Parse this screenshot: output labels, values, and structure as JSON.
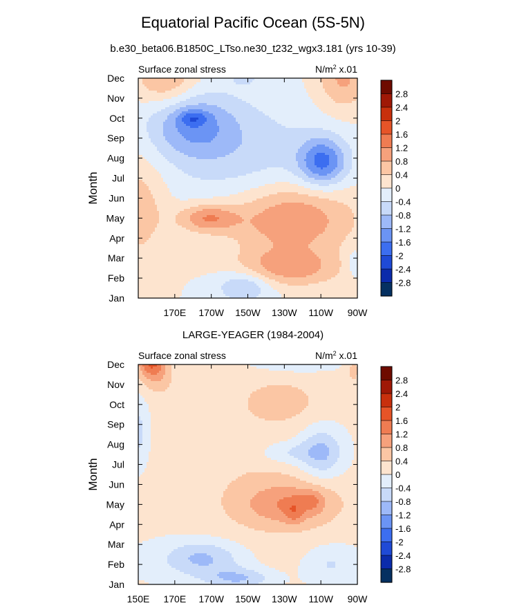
{
  "title": "Equatorial Pacific Ocean (5S-5N)",
  "subtitle": "b.e30_beta06.B1850C_LTso.ne30_t232_wgx3.181 (yrs 10-39)",
  "chart_data": [
    {
      "type": "heatmap",
      "panel_title": "",
      "left_string": "Surface zonal stress",
      "units_prefix": "N/m",
      "units_exp": "2",
      "units_suffix": " x.01",
      "ylabel": "Month",
      "xlim": [
        150,
        270
      ],
      "x_ticks": [
        {
          "label": "170E",
          "lon": 170
        },
        {
          "label": "170W",
          "lon": 190
        },
        {
          "label": "150W",
          "lon": 210
        },
        {
          "label": "130W",
          "lon": 230
        },
        {
          "label": "110W",
          "lon": 250
        },
        {
          "label": "90W",
          "lon": 270
        }
      ],
      "months": [
        "Jan",
        "Feb",
        "Mar",
        "Apr",
        "May",
        "Jun",
        "Jul",
        "Aug",
        "Sep",
        "Oct",
        "Nov",
        "Dec"
      ],
      "levels": [
        -2.8,
        -2.4,
        -2,
        -1.6,
        -1.2,
        -0.8,
        -0.4,
        0,
        0.4,
        0.8,
        1.2,
        1.6,
        2,
        2.4,
        2.8
      ],
      "features": [
        {
          "lon": 233,
          "month": 4.0,
          "amp": 1.3,
          "wx": 34,
          "wy": 1.8
        },
        {
          "lon": 188,
          "month": 4.0,
          "amp": 1.2,
          "wx": 16,
          "wy": 0.7
        },
        {
          "lon": 232,
          "month": 1.5,
          "amp": 1.0,
          "wx": 28,
          "wy": 0.9
        },
        {
          "lon": 180,
          "month": 8.6,
          "amp": -1.1,
          "wx": 24,
          "wy": 1.6
        },
        {
          "lon": 180,
          "month": 9.0,
          "amp": -0.8,
          "wx": 8,
          "wy": 0.4
        },
        {
          "lon": 251,
          "month": 6.8,
          "amp": -1.6,
          "wx": 13,
          "wy": 1.2
        },
        {
          "lon": 210,
          "month": 7.0,
          "amp": -0.6,
          "wx": 45,
          "wy": 3.0
        },
        {
          "lon": 208,
          "month": 0.6,
          "amp": -0.9,
          "wx": 15,
          "wy": 0.8
        },
        {
          "lon": 150,
          "month": 4.5,
          "amp": 0.7,
          "wx": 15,
          "wy": 2.5
        },
        {
          "lon": 165,
          "month": 11.0,
          "amp": 0.9,
          "wx": 16,
          "wy": 1.3
        },
        {
          "lon": 262,
          "month": 11.0,
          "amp": 0.9,
          "wx": 14,
          "wy": 1.6
        },
        {
          "lon": 208,
          "month": 11.3,
          "amp": -0.5,
          "wx": 9,
          "wy": 0.7
        },
        {
          "lon": 268,
          "month": 1.8,
          "amp": -0.4,
          "wx": 5,
          "wy": 0.8
        }
      ]
    },
    {
      "type": "heatmap",
      "panel_title": "LARGE-YEAGER (1984-2004)",
      "left_string": "Surface zonal stress",
      "units_prefix": "N/m",
      "units_exp": "2",
      "units_suffix": " x.01",
      "ylabel": "Month",
      "xlim": [
        150,
        270
      ],
      "x_ticks": [
        {
          "label": "150E",
          "lon": 150
        },
        {
          "label": "170E",
          "lon": 170
        },
        {
          "label": "170W",
          "lon": 190
        },
        {
          "label": "150W",
          "lon": 210
        },
        {
          "label": "130W",
          "lon": 230
        },
        {
          "label": "110W",
          "lon": 250
        },
        {
          "label": "90W",
          "lon": 270
        }
      ],
      "months": [
        "Jan",
        "Feb",
        "Mar",
        "Apr",
        "May",
        "Jun",
        "Jul",
        "Aug",
        "Sep",
        "Oct",
        "Nov",
        "Dec"
      ],
      "levels": [
        -2.8,
        -2.4,
        -2,
        -1.6,
        -1.2,
        -0.8,
        -0.4,
        0,
        0.4,
        0.8,
        1.2,
        1.6,
        2,
        2.4,
        2.8
      ],
      "features": [
        {
          "lon": 215,
          "month": 5.5,
          "amp": 0.35,
          "wx": 50,
          "wy": 5.0
        },
        {
          "lon": 233,
          "month": 4.0,
          "amp": 0.95,
          "wx": 26,
          "wy": 1.1
        },
        {
          "lon": 235,
          "month": 3.6,
          "amp": 0.5,
          "wx": 5,
          "wy": 0.6
        },
        {
          "lon": 245,
          "month": 4.2,
          "amp": 0.5,
          "wx": 6,
          "wy": 0.5
        },
        {
          "lon": 228,
          "month": 9.2,
          "amp": 0.55,
          "wx": 18,
          "wy": 0.9
        },
        {
          "lon": 157,
          "month": 11.4,
          "amp": 1.8,
          "wx": 8,
          "wy": 1.1
        },
        {
          "lon": 163,
          "month": 10.3,
          "amp": 0.4,
          "wx": 8,
          "wy": 1.0
        },
        {
          "lon": 185,
          "month": 1.3,
          "amp": -1.0,
          "wx": 22,
          "wy": 0.9
        },
        {
          "lon": 205,
          "month": 0.3,
          "amp": -0.9,
          "wx": 18,
          "wy": 0.5
        },
        {
          "lon": 235,
          "month": 11.5,
          "amp": -1.1,
          "wx": 20,
          "wy": 0.6
        },
        {
          "lon": 250,
          "month": 6.6,
          "amp": -1.1,
          "wx": 12,
          "wy": 1.2
        },
        {
          "lon": 230,
          "month": 6.6,
          "amp": -0.6,
          "wx": 14,
          "wy": 0.6
        },
        {
          "lon": 150,
          "month": 7.6,
          "amp": -0.6,
          "wx": 5,
          "wy": 1.5
        },
        {
          "lon": 255,
          "month": 1.0,
          "amp": -0.5,
          "wx": 14,
          "wy": 0.9
        },
        {
          "lon": 268,
          "month": 10.7,
          "amp": 0.5,
          "wx": 4,
          "wy": 0.7
        }
      ]
    }
  ],
  "colorbar": {
    "labels": [
      "2.8",
      "2.4",
      "2",
      "1.6",
      "1.2",
      "0.8",
      "0.4",
      "0",
      "-0.4",
      "-0.8",
      "-1.2",
      "-1.6",
      "-2",
      "-2.4",
      "-2.8"
    ],
    "colors": [
      "#053061",
      "#0b2bab",
      "#1f4ad6",
      "#3c6ef0",
      "#6b94f4",
      "#9db9f8",
      "#c8daf9",
      "#e3eefb",
      "#fde4cf",
      "#fbc6a4",
      "#f6a17c",
      "#ef7c52",
      "#e65428",
      "#c8300d",
      "#9f1806",
      "#6e0b00"
    ]
  }
}
